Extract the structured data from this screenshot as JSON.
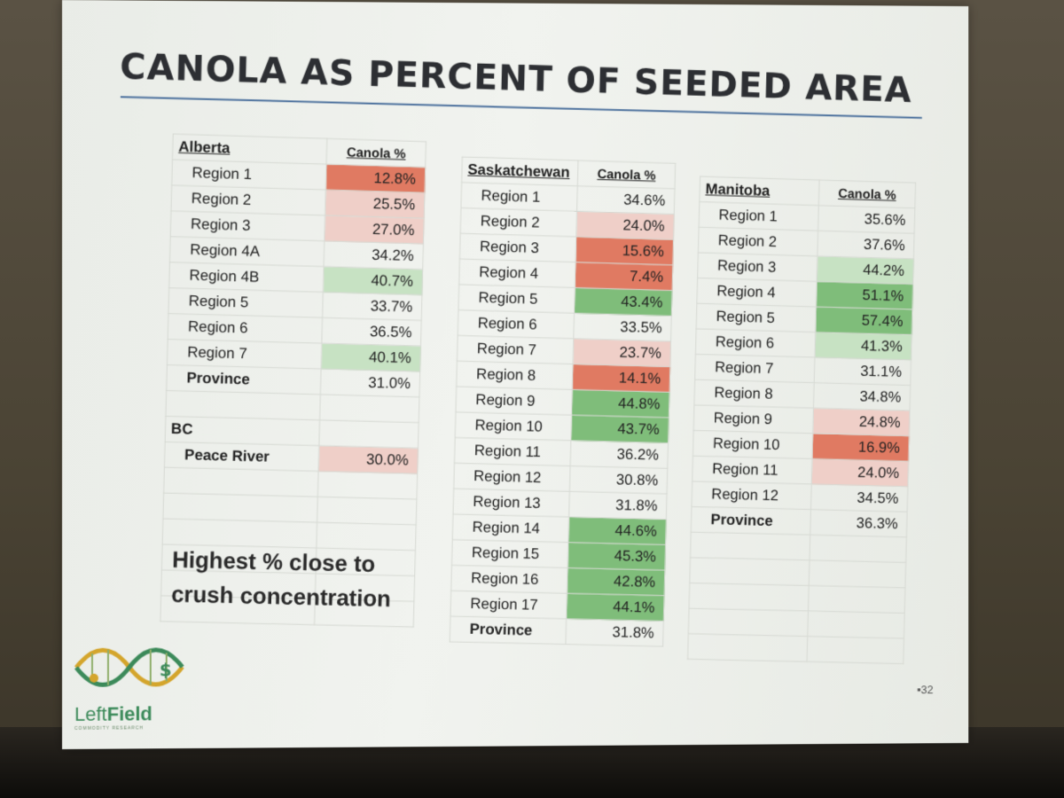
{
  "slide": {
    "title": "CANOLA AS PERCENT OF SEEDED AREA",
    "page_number": "32",
    "note_lines": [
      "Highest % close to",
      "crush concentration"
    ],
    "logo": {
      "name_light": "Left",
      "name_bold": "Field",
      "tagline": "COMMODITY RESEARCH"
    }
  },
  "colors": {
    "strong_red": "#e07a62",
    "light_red": "#efcfc8",
    "strong_green": "#7fbd7a",
    "light_green": "#c7e2c3",
    "title": "#2d2f33",
    "rule": "#4a6f9c"
  },
  "alberta": {
    "header": "Alberta",
    "col_header": "Canola %",
    "rows": [
      {
        "region": "Region 1",
        "value": "12.8%",
        "shade": "strong_red"
      },
      {
        "region": "Region 2",
        "value": "25.5%",
        "shade": "light_red"
      },
      {
        "region": "Region 3",
        "value": "27.0%",
        "shade": "light_red"
      },
      {
        "region": "Region 4A",
        "value": "34.2%",
        "shade": "none"
      },
      {
        "region": "Region 4B",
        "value": "40.7%",
        "shade": "light_green"
      },
      {
        "region": "Region 5",
        "value": "33.7%",
        "shade": "none"
      },
      {
        "region": "Region 6",
        "value": "36.5%",
        "shade": "none"
      },
      {
        "region": "Region 7",
        "value": "40.1%",
        "shade": "light_green"
      }
    ],
    "province_label": "Province",
    "province_value": "31.0%"
  },
  "bc": {
    "header": "BC",
    "region": "Peace River",
    "value": "30.0%"
  },
  "saskatchewan": {
    "header": "Saskatchewan",
    "col_header": "Canola %",
    "rows": [
      {
        "region": "Region 1",
        "value": "34.6%",
        "shade": "none"
      },
      {
        "region": "Region 2",
        "value": "24.0%",
        "shade": "light_red"
      },
      {
        "region": "Region 3",
        "value": "15.6%",
        "shade": "strong_red"
      },
      {
        "region": "Region 4",
        "value": "7.4%",
        "shade": "strong_red"
      },
      {
        "region": "Region 5",
        "value": "43.4%",
        "shade": "strong_green"
      },
      {
        "region": "Region 6",
        "value": "33.5%",
        "shade": "none"
      },
      {
        "region": "Region 7",
        "value": "23.7%",
        "shade": "light_red"
      },
      {
        "region": "Region 8",
        "value": "14.1%",
        "shade": "strong_red"
      },
      {
        "region": "Region 9",
        "value": "44.8%",
        "shade": "strong_green"
      },
      {
        "region": "Region 10",
        "value": "43.7%",
        "shade": "strong_green"
      },
      {
        "region": "Region 11",
        "value": "36.2%",
        "shade": "none"
      },
      {
        "region": "Region 12",
        "value": "30.8%",
        "shade": "none"
      },
      {
        "region": "Region 13",
        "value": "31.8%",
        "shade": "none"
      },
      {
        "region": "Region 14",
        "value": "44.6%",
        "shade": "strong_green"
      },
      {
        "region": "Region 15",
        "value": "45.3%",
        "shade": "strong_green"
      },
      {
        "region": "Region 16",
        "value": "42.8%",
        "shade": "strong_green"
      },
      {
        "region": "Region 17",
        "value": "44.1%",
        "shade": "strong_green"
      }
    ],
    "province_label": "Province",
    "province_value": "31.8%"
  },
  "manitoba": {
    "header": "Manitoba",
    "col_header": "Canola %",
    "rows": [
      {
        "region": "Region 1",
        "value": "35.6%",
        "shade": "none"
      },
      {
        "region": "Region 2",
        "value": "37.6%",
        "shade": "none"
      },
      {
        "region": "Region 3",
        "value": "44.2%",
        "shade": "light_green"
      },
      {
        "region": "Region 4",
        "value": "51.1%",
        "shade": "strong_green"
      },
      {
        "region": "Region 5",
        "value": "57.4%",
        "shade": "strong_green"
      },
      {
        "region": "Region 6",
        "value": "41.3%",
        "shade": "light_green"
      },
      {
        "region": "Region 7",
        "value": "31.1%",
        "shade": "none"
      },
      {
        "region": "Region 8",
        "value": "34.8%",
        "shade": "none"
      },
      {
        "region": "Region 9",
        "value": "24.8%",
        "shade": "light_red"
      },
      {
        "region": "Region 10",
        "value": "16.9%",
        "shade": "strong_red"
      },
      {
        "region": "Region 11",
        "value": "24.0%",
        "shade": "light_red"
      },
      {
        "region": "Region 12",
        "value": "34.5%",
        "shade": "none"
      }
    ],
    "province_label": "Province",
    "province_value": "36.3%"
  }
}
